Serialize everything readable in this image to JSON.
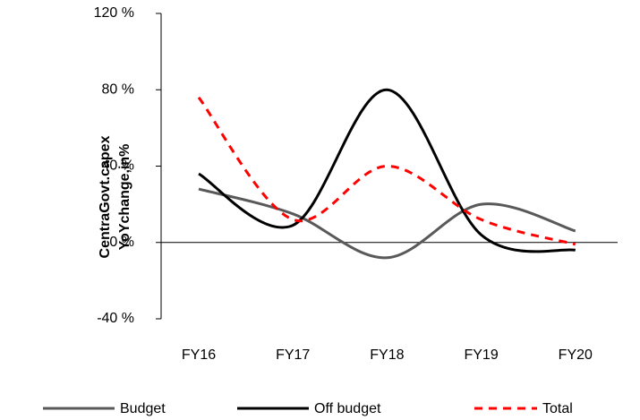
{
  "chart_data": {
    "type": "line",
    "ylabel": [
      "CentraGovt.capex",
      "YoYchange,in%"
    ],
    "categories": [
      "FY16",
      "FY17",
      "FY18",
      "FY19",
      "FY20"
    ],
    "series": [
      {
        "name": "Budget",
        "color": "#595959",
        "dash": false,
        "values": [
          28,
          15,
          -8,
          20,
          6
        ]
      },
      {
        "name": "Off budget",
        "color": "#000000",
        "dash": false,
        "values": [
          36,
          9,
          80,
          4,
          -4
        ]
      },
      {
        "name": "Total",
        "color": "#ff0000",
        "dash": true,
        "values": [
          76,
          12,
          40,
          12,
          -1
        ]
      }
    ],
    "ylim": [
      -40,
      120
    ],
    "yticks": [
      {
        "value": -40,
        "label": "-40 %"
      },
      {
        "value": 0,
        "label": "0 %"
      },
      {
        "value": 40,
        "label": "40 %"
      },
      {
        "value": 80,
        "label": "80 %"
      },
      {
        "value": 120,
        "label": "120 %"
      }
    ]
  }
}
